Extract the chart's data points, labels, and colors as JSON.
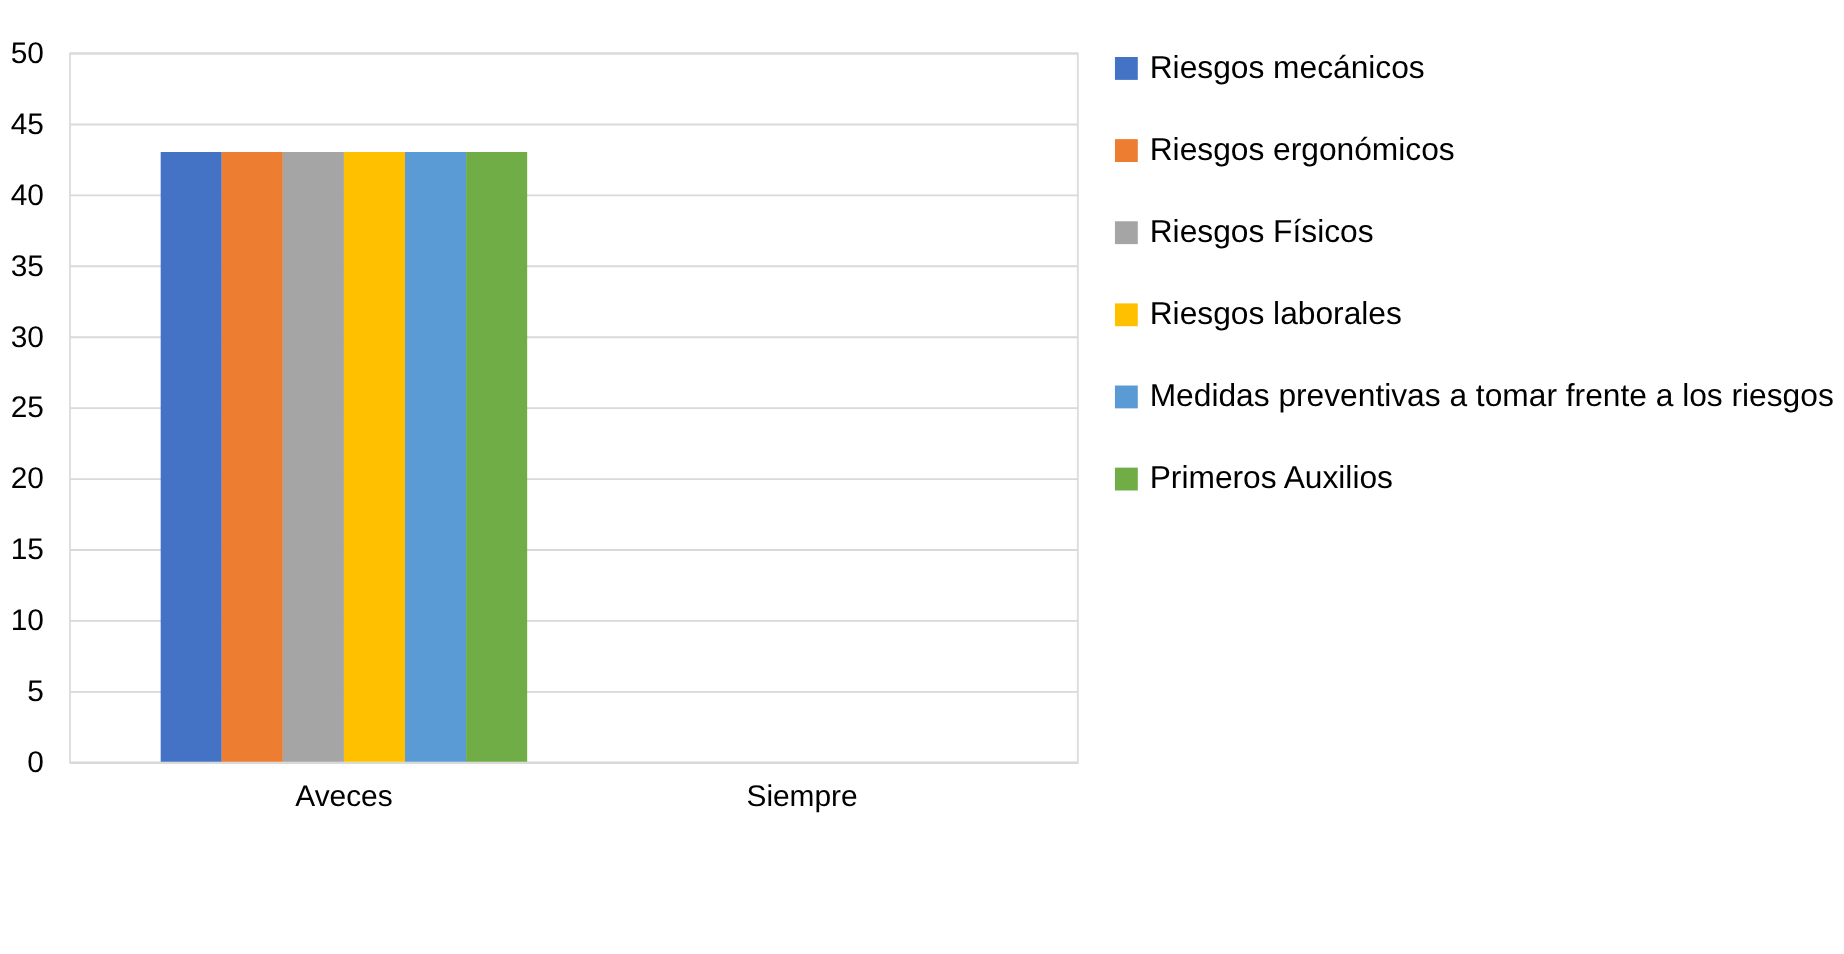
{
  "chart_data": {
    "type": "bar",
    "categories": [
      "Aveces",
      "Siempre"
    ],
    "series": [
      {
        "name": "Riesgos mecánicos",
        "color": "#4472c4",
        "values": [
          43,
          0
        ]
      },
      {
        "name": "Riesgos ergonómicos",
        "color": "#ed7d31",
        "values": [
          43,
          0
        ]
      },
      {
        "name": "Riesgos Físicos",
        "color": "#a5a5a5",
        "values": [
          43,
          0
        ]
      },
      {
        "name": "Riesgos laborales",
        "color": "#ffc000",
        "values": [
          43,
          0
        ]
      },
      {
        "name": "Medidas preventivas a tomar frente a los riesgos",
        "color": "#5b9bd5",
        "values": [
          43,
          0
        ]
      },
      {
        "name": "Primeros Auxilios",
        "color": "#70ad47",
        "values": [
          43,
          0
        ]
      }
    ],
    "ylim": [
      0,
      50
    ],
    "yticks": [
      0,
      5,
      10,
      15,
      20,
      25,
      30,
      35,
      40,
      45,
      50
    ],
    "grid": "y",
    "legend": "right"
  }
}
